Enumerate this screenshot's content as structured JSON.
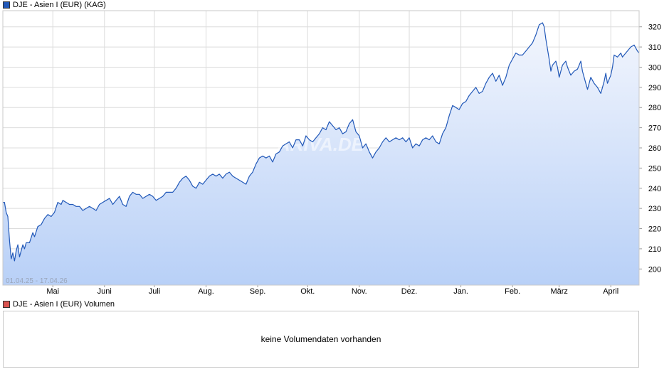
{
  "legend": {
    "price_label": "DJE - Asien I (EUR) (KAG)",
    "price_color": "#2158b8",
    "volume_label": "DJE - Asien I (EUR) Volumen",
    "volume_color": "#d9534f"
  },
  "watermark": "ARIVA.DE",
  "volume_message": "keine Volumendaten vorhanden",
  "chart_data": {
    "type": "area",
    "date_range_label": "01.04.25 - 17.04.26",
    "line_color": "#2158b8",
    "fill_top_color": "#f3f6fd",
    "fill_bottom_color": "#b8d0f7",
    "grid": true,
    "ylim": [
      192,
      328
    ],
    "y_ticks": [
      200,
      210,
      220,
      230,
      240,
      250,
      260,
      270,
      280,
      290,
      300,
      310,
      320
    ],
    "x_range": [
      0,
      382
    ],
    "x_ticks": [
      {
        "label": "Mai",
        "x": 30
      },
      {
        "label": "Juni",
        "x": 61
      },
      {
        "label": "Juli",
        "x": 91
      },
      {
        "label": "Aug.",
        "x": 122
      },
      {
        "label": "Sep.",
        "x": 153
      },
      {
        "label": "Okt.",
        "x": 183
      },
      {
        "label": "Nov.",
        "x": 214
      },
      {
        "label": "Dez.",
        "x": 244
      },
      {
        "label": "Jan.",
        "x": 275
      },
      {
        "label": "Feb.",
        "x": 306
      },
      {
        "label": "März",
        "x": 334
      },
      {
        "label": "April",
        "x": 365
      }
    ],
    "points": [
      [
        0,
        233
      ],
      [
        1,
        233
      ],
      [
        2,
        228
      ],
      [
        3,
        226
      ],
      [
        4,
        214
      ],
      [
        5,
        205
      ],
      [
        6,
        208
      ],
      [
        7,
        204
      ],
      [
        8,
        209
      ],
      [
        9,
        212
      ],
      [
        10,
        206
      ],
      [
        11,
        209
      ],
      [
        12,
        212
      ],
      [
        13,
        210
      ],
      [
        14,
        213
      ],
      [
        16,
        213
      ],
      [
        18,
        218
      ],
      [
        19,
        216
      ],
      [
        21,
        221
      ],
      [
        23,
        222
      ],
      [
        25,
        225
      ],
      [
        27,
        227
      ],
      [
        29,
        226
      ],
      [
        31,
        228
      ],
      [
        33,
        233
      ],
      [
        35,
        232
      ],
      [
        36,
        234
      ],
      [
        38,
        233
      ],
      [
        40,
        232
      ],
      [
        42,
        232
      ],
      [
        44,
        231
      ],
      [
        46,
        231
      ],
      [
        48,
        229
      ],
      [
        50,
        230
      ],
      [
        52,
        231
      ],
      [
        54,
        230
      ],
      [
        56,
        229
      ],
      [
        58,
        232
      ],
      [
        60,
        233
      ],
      [
        62,
        234
      ],
      [
        64,
        235
      ],
      [
        66,
        232
      ],
      [
        68,
        234
      ],
      [
        70,
        236
      ],
      [
        72,
        232
      ],
      [
        74,
        231
      ],
      [
        76,
        236
      ],
      [
        78,
        238
      ],
      [
        80,
        237
      ],
      [
        82,
        237
      ],
      [
        84,
        235
      ],
      [
        86,
        236
      ],
      [
        88,
        237
      ],
      [
        90,
        236
      ],
      [
        92,
        234
      ],
      [
        94,
        235
      ],
      [
        96,
        236
      ],
      [
        98,
        238
      ],
      [
        100,
        238
      ],
      [
        102,
        238
      ],
      [
        104,
        240
      ],
      [
        106,
        243
      ],
      [
        108,
        245
      ],
      [
        110,
        246
      ],
      [
        112,
        244
      ],
      [
        114,
        241
      ],
      [
        116,
        240
      ],
      [
        118,
        243
      ],
      [
        120,
        242
      ],
      [
        122,
        244
      ],
      [
        124,
        246
      ],
      [
        126,
        247
      ],
      [
        128,
        246
      ],
      [
        130,
        247
      ],
      [
        132,
        245
      ],
      [
        134,
        247
      ],
      [
        136,
        248
      ],
      [
        138,
        246
      ],
      [
        140,
        245
      ],
      [
        142,
        244
      ],
      [
        144,
        243
      ],
      [
        146,
        242
      ],
      [
        148,
        246
      ],
      [
        150,
        248
      ],
      [
        152,
        252
      ],
      [
        154,
        255
      ],
      [
        156,
        256
      ],
      [
        158,
        255
      ],
      [
        160,
        256
      ],
      [
        162,
        253
      ],
      [
        164,
        257
      ],
      [
        166,
        258
      ],
      [
        168,
        261
      ],
      [
        170,
        262
      ],
      [
        172,
        263
      ],
      [
        174,
        260
      ],
      [
        176,
        264
      ],
      [
        178,
        264
      ],
      [
        180,
        261
      ],
      [
        182,
        266
      ],
      [
        184,
        264
      ],
      [
        186,
        263
      ],
      [
        188,
        265
      ],
      [
        190,
        267
      ],
      [
        192,
        270
      ],
      [
        194,
        269
      ],
      [
        196,
        273
      ],
      [
        198,
        271
      ],
      [
        200,
        269
      ],
      [
        202,
        270
      ],
      [
        204,
        267
      ],
      [
        206,
        268
      ],
      [
        208,
        272
      ],
      [
        210,
        274
      ],
      [
        212,
        268
      ],
      [
        214,
        266
      ],
      [
        216,
        260
      ],
      [
        218,
        262
      ],
      [
        220,
        258
      ],
      [
        222,
        255
      ],
      [
        224,
        258
      ],
      [
        226,
        260
      ],
      [
        228,
        263
      ],
      [
        230,
        265
      ],
      [
        232,
        263
      ],
      [
        234,
        264
      ],
      [
        236,
        265
      ],
      [
        238,
        264
      ],
      [
        240,
        265
      ],
      [
        242,
        263
      ],
      [
        244,
        265
      ],
      [
        246,
        260
      ],
      [
        248,
        262
      ],
      [
        250,
        261
      ],
      [
        252,
        264
      ],
      [
        254,
        265
      ],
      [
        256,
        264
      ],
      [
        258,
        266
      ],
      [
        260,
        263
      ],
      [
        262,
        262
      ],
      [
        264,
        267
      ],
      [
        266,
        270
      ],
      [
        268,
        276
      ],
      [
        270,
        281
      ],
      [
        272,
        280
      ],
      [
        274,
        279
      ],
      [
        276,
        282
      ],
      [
        278,
        283
      ],
      [
        280,
        286
      ],
      [
        282,
        288
      ],
      [
        284,
        290
      ],
      [
        286,
        287
      ],
      [
        288,
        288
      ],
      [
        290,
        292
      ],
      [
        292,
        295
      ],
      [
        294,
        297
      ],
      [
        296,
        293
      ],
      [
        298,
        296
      ],
      [
        300,
        291
      ],
      [
        302,
        295
      ],
      [
        304,
        301
      ],
      [
        306,
        304
      ],
      [
        308,
        307
      ],
      [
        310,
        306
      ],
      [
        312,
        306
      ],
      [
        314,
        308
      ],
      [
        316,
        310
      ],
      [
        318,
        312
      ],
      [
        320,
        316
      ],
      [
        322,
        321
      ],
      [
        324,
        322
      ],
      [
        325,
        320
      ],
      [
        326,
        314
      ],
      [
        328,
        304
      ],
      [
        329,
        298
      ],
      [
        330,
        301
      ],
      [
        332,
        303
      ],
      [
        333,
        300
      ],
      [
        334,
        295
      ],
      [
        336,
        301
      ],
      [
        338,
        303
      ],
      [
        339,
        300
      ],
      [
        341,
        296
      ],
      [
        343,
        298
      ],
      [
        345,
        299
      ],
      [
        347,
        303
      ],
      [
        348,
        298
      ],
      [
        350,
        292
      ],
      [
        351,
        289
      ],
      [
        353,
        295
      ],
      [
        355,
        292
      ],
      [
        357,
        290
      ],
      [
        359,
        287
      ],
      [
        361,
        293
      ],
      [
        362,
        297
      ],
      [
        363,
        292
      ],
      [
        365,
        296
      ],
      [
        366,
        300
      ],
      [
        367,
        306
      ],
      [
        369,
        305
      ],
      [
        371,
        307
      ],
      [
        372,
        305
      ],
      [
        373,
        306
      ],
      [
        375,
        308
      ],
      [
        377,
        310
      ],
      [
        379,
        311
      ],
      [
        381,
        308
      ],
      [
        382,
        307
      ]
    ]
  }
}
